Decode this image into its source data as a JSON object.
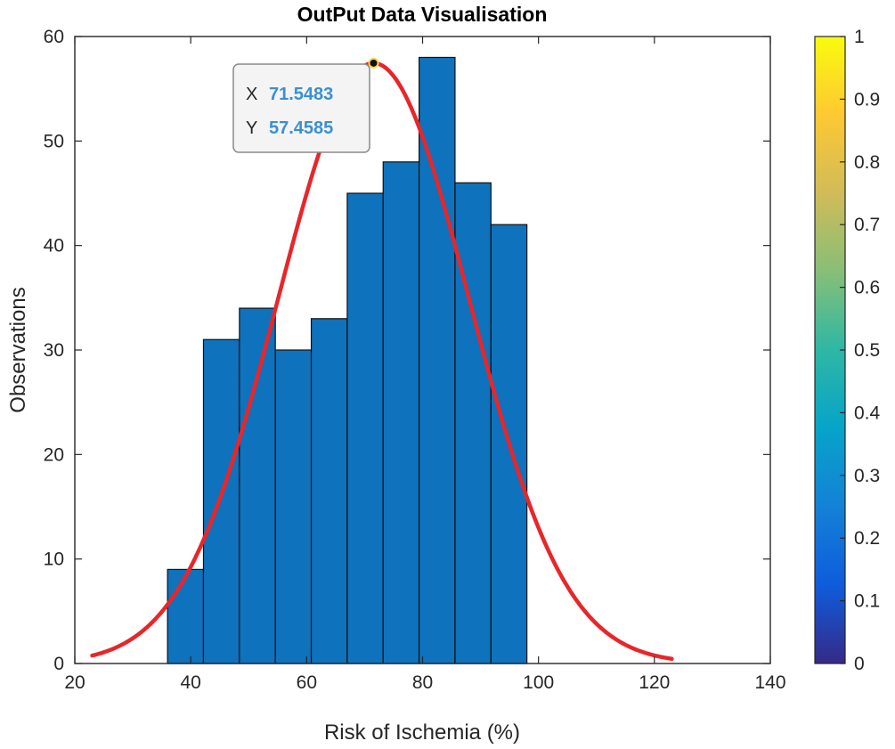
{
  "chart_data": {
    "type": "bar",
    "title": "OutPut Data Visualisation",
    "xlabel": "Risk of Ischemia (%)",
    "ylabel": "Observations",
    "xlim": [
      20,
      140
    ],
    "ylim": [
      0,
      60
    ],
    "xticks": [
      20,
      40,
      60,
      80,
      100,
      120,
      140
    ],
    "yticks": [
      0,
      10,
      20,
      30,
      40,
      50,
      60
    ],
    "bin_edges": [
      36,
      42.2,
      48.4,
      54.6,
      60.8,
      67,
      73.2,
      79.4,
      85.6,
      91.8,
      98
    ],
    "values": [
      9,
      31,
      34,
      30,
      33,
      45,
      48,
      58,
      46,
      42
    ],
    "bar_color": "#0e72bd",
    "grid": false,
    "fit_curve": {
      "type": "normal",
      "mean": 71.5483,
      "peak": 57.4585,
      "sigma": 16.5,
      "x_range": [
        23,
        123
      ],
      "color": "#e8262a"
    },
    "datatip": {
      "x_label": "X",
      "x_value": "71.5483",
      "y_label": "Y",
      "y_value": "57.4585",
      "x": 71.5483,
      "y": 57.4585
    },
    "colorbar": {
      "colormap": "parula",
      "range": [
        0,
        1
      ],
      "ticks": [
        "0",
        "0.1",
        "0.2",
        "0.3",
        "0.4",
        "0.5",
        "0.6",
        "0.7",
        "0.8",
        "0.9",
        "1"
      ],
      "stops": [
        "#352a87",
        "#0f5cdd",
        "#1481d6",
        "#06a4ca",
        "#2eb7a4",
        "#87bf77",
        "#d1bb59",
        "#fec832",
        "#f9fb0e"
      ]
    }
  }
}
